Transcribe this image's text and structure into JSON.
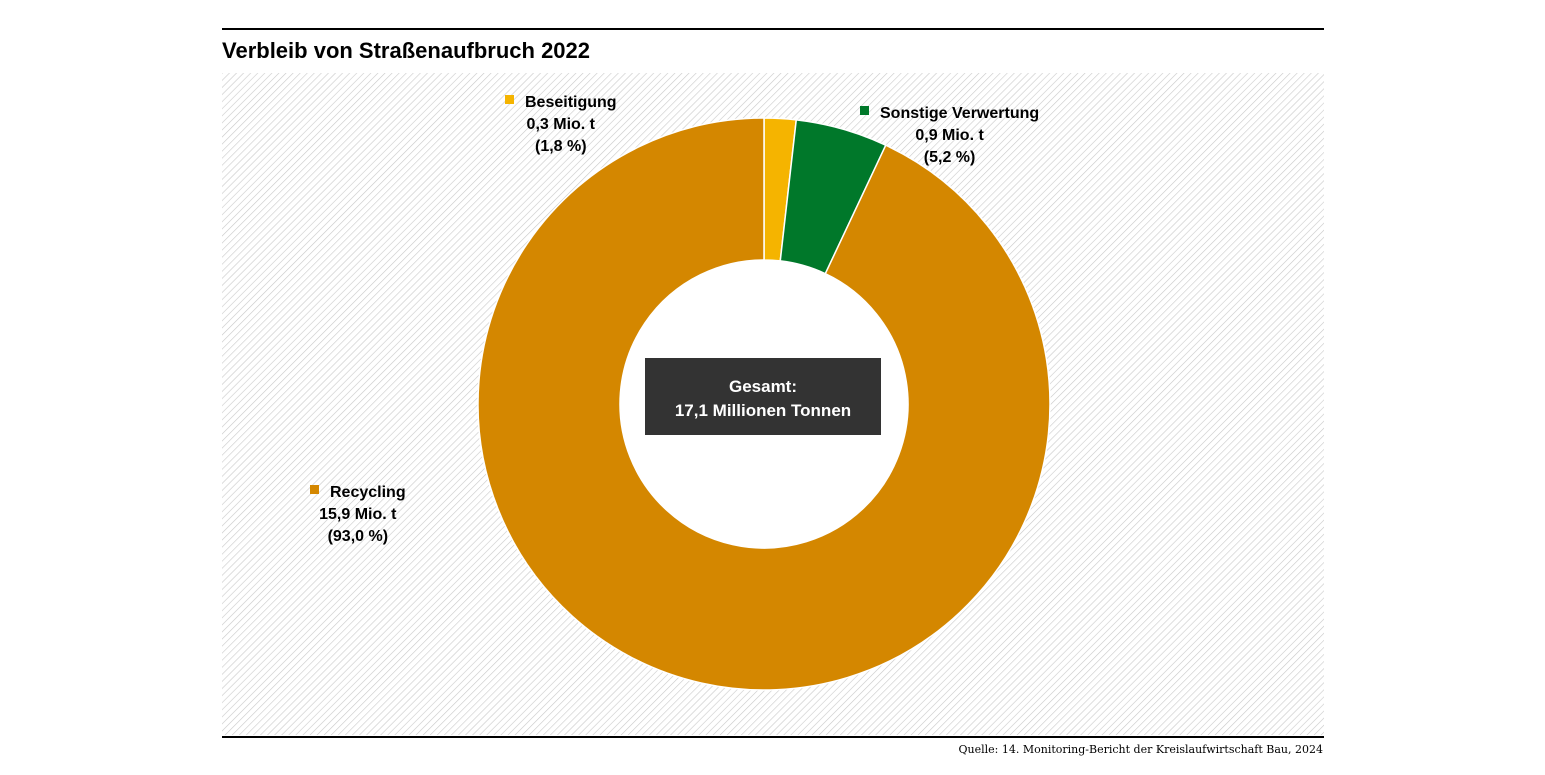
{
  "chart_data": {
    "type": "pie",
    "variant": "donut",
    "title": "Verbleib von Straßenaufbruch 2022",
    "slices": [
      {
        "label": "Beseitigung",
        "value_label": "0,3 Mio. t",
        "percent_label": "(1,8 %)",
        "value": 0.3,
        "percent": 1.8,
        "color": "#F5B400"
      },
      {
        "label": "Sonstige Verwertung",
        "value_label": "0,9  Mio. t",
        "percent_label": "(5,2 %)",
        "value": 0.9,
        "percent": 5.2,
        "color": "#00782A"
      },
      {
        "label": "Recycling",
        "value_label": "15,9 Mio. t",
        "percent_label": "(93,0 %)",
        "value": 15.9,
        "percent": 93.0,
        "color": "#D48700"
      }
    ],
    "center": {
      "line1": "Gesamt:",
      "line2": "17,1 Millionen Tonnen"
    },
    "source": "Quelle: 14. Monitoring-Bericht der Kreislaufwirtschaft Bau, 2024"
  }
}
